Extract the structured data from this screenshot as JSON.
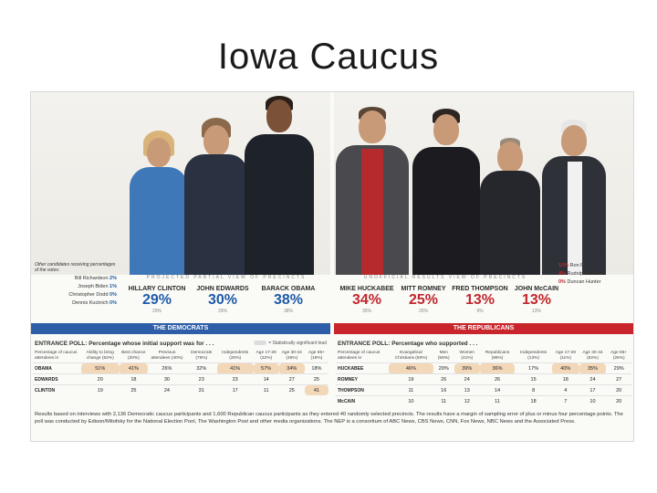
{
  "slide": {
    "title": "Iowa Caucus"
  },
  "democrats": {
    "photo_caption": "PROJECTED PARTIAL VIEW OF PRECINCTS",
    "others_heading": "Other candidates receiving percentages of the votes:",
    "others": [
      {
        "name": "Bill Richardson",
        "value": "2%"
      },
      {
        "name": "Joseph Biden",
        "value": "1%"
      },
      {
        "name": "Christopher Dodd",
        "value": "0%"
      },
      {
        "name": "Dennis Kucinich",
        "value": "0%"
      }
    ],
    "candidates": [
      {
        "name": "HILLARY CLINTON",
        "pct": "29%",
        "sub": "29%"
      },
      {
        "name": "JOHN EDWARDS",
        "pct": "30%",
        "sub": "29%"
      },
      {
        "name": "BARACK OBAMA",
        "pct": "38%",
        "sub": "38%"
      }
    ],
    "banner": "THE DEMOCRATS",
    "poll_title": "ENTRANCE POLL: Percentage whose initial support was for . . .",
    "legend": "= Statistically significant lead",
    "table": {
      "headers": [
        "Percentage of caucus attendees in",
        "Ability to bring change (52%)",
        "Best chance (20%)",
        "Previous attendees (40%)",
        "Democrats (76%)",
        "Independents (20%)",
        "Age 17-29 (22%)",
        "Age 30-44 (46%)",
        "Age 65+ (18%)"
      ],
      "rows": [
        {
          "name": "OBAMA",
          "cells": [
            "51%",
            "41%",
            "26%",
            "32%",
            "41%",
            "57%",
            "34%",
            "18%"
          ],
          "hl": [
            true,
            true,
            false,
            false,
            true,
            true,
            true,
            false
          ]
        },
        {
          "name": "EDWARDS",
          "cells": [
            "20",
            "18",
            "30",
            "23",
            "23",
            "14",
            "27",
            "25"
          ],
          "hl": [
            false,
            false,
            false,
            false,
            false,
            false,
            false,
            false
          ]
        },
        {
          "name": "CLINTON",
          "cells": [
            "19",
            "25",
            "24",
            "31",
            "17",
            "11",
            "25",
            "41"
          ],
          "hl": [
            false,
            false,
            false,
            false,
            false,
            false,
            false,
            true
          ]
        }
      ]
    }
  },
  "republicans": {
    "photo_caption": "UNOFFICIAL RESULTS VIEW OF PRECINCTS",
    "others": [
      {
        "name": "Ron Paul",
        "value": "10%"
      },
      {
        "name": "Rudolph Giuliani",
        "value": "4%"
      },
      {
        "name": "Duncan Hunter",
        "value": "0%"
      }
    ],
    "candidates": [
      {
        "name": "MIKE HUCKABEE",
        "pct": "34%",
        "sub": "35%"
      },
      {
        "name": "MITT ROMNEY",
        "pct": "25%",
        "sub": "25%"
      },
      {
        "name": "FRED THOMPSON",
        "pct": "13%",
        "sub": "9%"
      },
      {
        "name": "JOHN McCAIN",
        "pct": "13%",
        "sub": "13%"
      }
    ],
    "banner": "THE REPUBLICANS",
    "poll_title": "ENTRANCE POLL: Percentage who supported . . .",
    "table": {
      "headers": [
        "Percentage of caucus attendees in",
        "Evangelical Christians (60%)",
        "Men (58%)",
        "Women (41%)",
        "Republicans (86%)",
        "Independents (13%)",
        "Age 17-29 (11%)",
        "Age 30-44 (52%)",
        "Age 65+ (26%)"
      ],
      "rows": [
        {
          "name": "HUCKABEE",
          "cells": [
            "46%",
            "29%",
            "39%",
            "36%",
            "17%",
            "40%",
            "35%",
            "29%"
          ],
          "hl": [
            true,
            false,
            true,
            true,
            false,
            true,
            true,
            false
          ]
        },
        {
          "name": "ROMNEY",
          "cells": [
            "19",
            "26",
            "24",
            "26",
            "15",
            "18",
            "24",
            "27"
          ],
          "hl": [
            false,
            false,
            false,
            false,
            false,
            false,
            false,
            false
          ]
        },
        {
          "name": "THOMPSON",
          "cells": [
            "11",
            "16",
            "13",
            "14",
            "8",
            "4",
            "17",
            "20"
          ],
          "hl": [
            false,
            false,
            false,
            false,
            false,
            false,
            false,
            false
          ]
        },
        {
          "name": "McCAIN",
          "cells": [
            "10",
            "11",
            "12",
            "11",
            "18",
            "7",
            "10",
            "20"
          ],
          "hl": [
            false,
            false,
            false,
            false,
            false,
            false,
            false,
            false
          ]
        }
      ]
    }
  },
  "footnote": "Results based on interviews with 2,136 Democratic caucus participants and 1,600 Republican caucus participants as they entered 40 randomly selected precincts. The results have a margin of sampling error of plus or minus four percentage points. The poll was conducted by Edison/Mitofsky for the National Election Pool, The Washington Post and other media organizations. The NEP is a consortium of ABC News, CBS News, CNN, Fox News, NBC News and the Associated Press."
}
